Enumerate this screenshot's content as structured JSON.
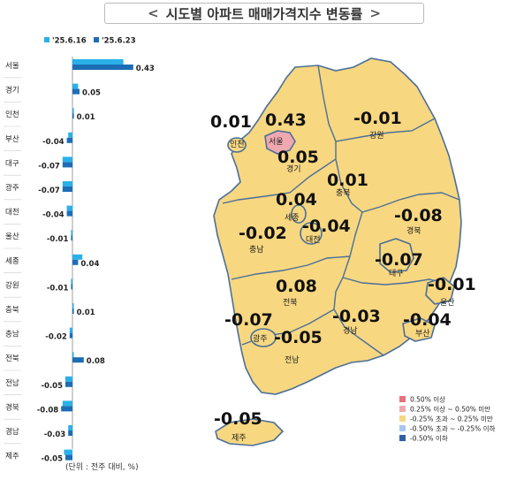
{
  "title": "시도별 아파트 매매가격지수 변동률",
  "chevron_left": "<",
  "chevron_right": ">",
  "unit_note": "(단위 : 전주 대비, %)",
  "colors": {
    "prev_week": "#2ab0e8",
    "this_week": "#1d6db5",
    "map_fill": "#f7d780",
    "map_stroke": "#4a6f9a",
    "seoul_fill": "#f0a8b0"
  },
  "chart_data": [
    {
      "type": "bar",
      "orientation": "horizontal",
      "categories": [
        "서울",
        "경기",
        "인천",
        "부산",
        "대구",
        "광주",
        "대전",
        "울산",
        "세종",
        "강원",
        "충북",
        "충남",
        "전북",
        "전남",
        "경북",
        "경남",
        "제주"
      ],
      "series": [
        {
          "name": "'25.6.16",
          "values": [
            0.36,
            0.04,
            0.01,
            -0.03,
            -0.07,
            -0.07,
            -0.04,
            -0.01,
            0.07,
            -0.01,
            0.0,
            -0.02,
            0.0,
            -0.05,
            -0.07,
            -0.03,
            -0.06
          ]
        },
        {
          "name": "'25.6.23",
          "values": [
            0.43,
            0.05,
            0.01,
            -0.04,
            -0.07,
            -0.07,
            -0.04,
            -0.01,
            0.04,
            -0.01,
            0.01,
            -0.02,
            0.08,
            -0.05,
            -0.08,
            -0.03,
            -0.05
          ]
        }
      ],
      "data_labels": [
        "0.43",
        "0.05",
        "0.01",
        "-0.04",
        "-0.07",
        "-0.07",
        "-0.04",
        "-0.01",
        "0.04",
        "-0.01",
        "0.01",
        "-0.02",
        "0.08",
        "-0.05",
        "-0.08",
        "-0.03",
        "-0.05"
      ],
      "legend": "top"
    },
    {
      "type": "map",
      "regions": [
        {
          "name": "인천",
          "value": "0.01"
        },
        {
          "name": "서울",
          "value": "0.43"
        },
        {
          "name": "경기",
          "value": "0.05"
        },
        {
          "name": "강원",
          "value": "-0.01"
        },
        {
          "name": "충북",
          "value": "0.01"
        },
        {
          "name": "세종",
          "value": "0.04"
        },
        {
          "name": "대전",
          "value": "-0.04"
        },
        {
          "name": "충남",
          "value": "-0.02"
        },
        {
          "name": "경북",
          "value": "-0.08"
        },
        {
          "name": "대구",
          "value": "-0.07"
        },
        {
          "name": "울산",
          "value": "-0.01"
        },
        {
          "name": "전북",
          "value": "0.08"
        },
        {
          "name": "경남",
          "value": "-0.03"
        },
        {
          "name": "부산",
          "value": "-0.04"
        },
        {
          "name": "광주",
          "value": "-0.07"
        },
        {
          "name": "전남",
          "value": "-0.05"
        },
        {
          "name": "제주",
          "value": "-0.05"
        }
      ],
      "legend": [
        {
          "label": "0.50% 이상",
          "color": "#e8707a"
        },
        {
          "label": "0.25% 이상 ~ 0.50% 미만",
          "color": "#f0a8b0"
        },
        {
          "label": "-0.25% 초과 ~ 0.25% 미만",
          "color": "#f7d780"
        },
        {
          "label": "-0.50% 초과 ~ -0.25% 이하",
          "color": "#a9c6ee"
        },
        {
          "label": "-0.50% 이하",
          "color": "#2f5fa7"
        }
      ]
    }
  ]
}
